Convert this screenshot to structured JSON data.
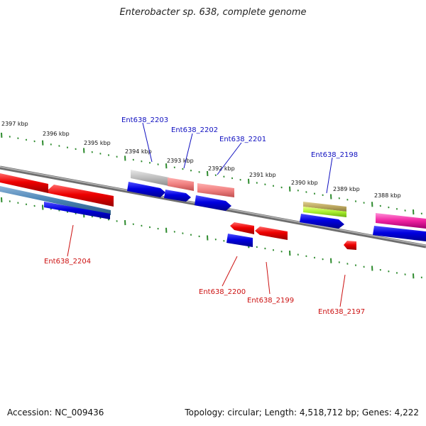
{
  "title": "Enterobacter sp. 638, complete genome",
  "accession": "Accession: NC_009436",
  "topology": "Topology: circular; Length: 4,518,712 bp; Genes: 4,222",
  "colors": {
    "backbone": "#8a8a8a",
    "tick": "#2e8b2e",
    "plus_label": "#1010c0",
    "minus_label": "#cc1010"
  },
  "kbp_labels": [
    {
      "text": "2397 kbp",
      "kbp": 2397
    },
    {
      "text": "2396 kbp",
      "kbp": 2396
    },
    {
      "text": "2395 kbp",
      "kbp": 2395
    },
    {
      "text": "2394 kbp",
      "kbp": 2394
    },
    {
      "text": "2393 kbp",
      "kbp": 2393
    },
    {
      "text": "2392 kbp",
      "kbp": 2392
    },
    {
      "text": "2391 kbp",
      "kbp": 2391
    },
    {
      "text": "2390 kbp",
      "kbp": 2390
    },
    {
      "text": "2389 kbp",
      "kbp": 2389
    },
    {
      "text": "2388 kbp",
      "kbp": 2388
    }
  ],
  "gene_labels": [
    {
      "text": "Ent638_2204",
      "strand": "minus"
    },
    {
      "text": "Ent638_2203",
      "strand": "plus"
    },
    {
      "text": "Ent638_2202",
      "strand": "plus"
    },
    {
      "text": "Ent638_2201",
      "strand": "plus"
    },
    {
      "text": "Ent638_2200",
      "strand": "minus"
    },
    {
      "text": "Ent638_2199",
      "strand": "minus"
    },
    {
      "text": "Ent638_2198",
      "strand": "plus"
    },
    {
      "text": "Ent638_2197",
      "strand": "minus"
    }
  ]
}
